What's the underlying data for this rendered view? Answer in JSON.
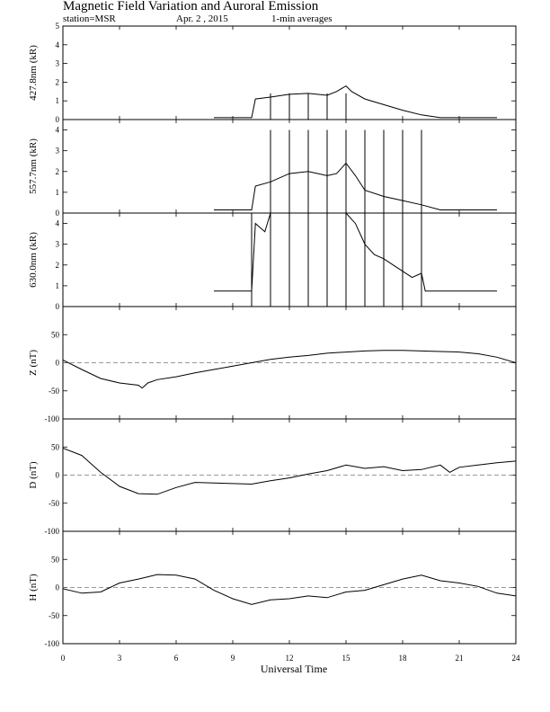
{
  "header": {
    "title": "Magnetic Field Variation and Auroral Emission",
    "station": "station=MSR",
    "date": "Apr. 2  , 2015",
    "averaging": "1-min averages"
  },
  "chart_data": [
    {
      "type": "line",
      "ylabel": "427.8nm (kR)",
      "xlim": [
        0,
        24
      ],
      "ylim": [
        0,
        5
      ],
      "yticks": [
        0,
        1,
        2,
        3,
        4,
        5
      ],
      "series": [
        {
          "x": [
            8,
            10,
            10.2,
            11,
            12,
            13,
            14,
            14.5,
            15,
            15.3,
            16,
            17,
            18,
            19,
            20,
            21,
            22,
            23
          ],
          "y": [
            0.1,
            0.1,
            1.1,
            1.2,
            1.35,
            1.4,
            1.3,
            1.5,
            1.8,
            1.5,
            1.1,
            0.8,
            0.5,
            0.25,
            0.1,
            0.1,
            0.1,
            0.1
          ]
        }
      ],
      "spikes": [
        11,
        12,
        13,
        14,
        15
      ],
      "spike_top": 1.4
    },
    {
      "type": "line",
      "ylabel": "557.7nm (kR)",
      "xlim": [
        0,
        24
      ],
      "ylim": [
        0,
        4.5
      ],
      "yticks": [
        0,
        1,
        2,
        3,
        4
      ],
      "series": [
        {
          "x": [
            8,
            10,
            10.2,
            11,
            12,
            13,
            14,
            14.5,
            15,
            15.5,
            16,
            17,
            18,
            19,
            20,
            21,
            22,
            23
          ],
          "y": [
            0.15,
            0.15,
            1.3,
            1.5,
            1.9,
            2.0,
            1.8,
            1.9,
            2.4,
            1.8,
            1.1,
            0.8,
            0.6,
            0.4,
            0.15,
            0.15,
            0.15,
            0.15
          ]
        }
      ],
      "spikes": [
        11,
        12,
        13,
        14,
        15,
        16,
        17,
        18,
        19
      ],
      "spike_top": 4.0
    },
    {
      "type": "line",
      "ylabel": "630.0nm (kR)",
      "xlim": [
        0,
        24
      ],
      "ylim": [
        0,
        4.5
      ],
      "yticks": [
        0,
        1,
        2,
        3,
        4
      ],
      "series": [
        {
          "x": [
            8,
            10,
            10.2,
            10.7,
            11,
            11.5,
            14.5,
            15,
            15.5,
            16,
            16.5,
            17,
            17.5,
            18,
            18.5,
            19,
            19.2,
            20,
            21,
            22,
            23
          ],
          "y": [
            0.75,
            0.75,
            4.0,
            3.6,
            4.5,
            4.5,
            4.5,
            4.5,
            4.0,
            3.0,
            2.5,
            2.3,
            2.0,
            1.7,
            1.4,
            1.6,
            0.75,
            0.75,
            0.75,
            0.75,
            0.75
          ]
        }
      ],
      "spikes": [
        10,
        11,
        12,
        13,
        14,
        15,
        16,
        17,
        18,
        19
      ],
      "spike_top": 4.5
    },
    {
      "type": "line",
      "ylabel": "Z (nT)",
      "xlim": [
        0,
        24
      ],
      "ylim": [
        -100,
        100
      ],
      "yticks": [
        -100,
        -50,
        0,
        50
      ],
      "zero_line": true,
      "series": [
        {
          "x": [
            0,
            1,
            2,
            3,
            4,
            4.2,
            4.5,
            5,
            6,
            7,
            8,
            9,
            10,
            11,
            12,
            13,
            14,
            15,
            16,
            17,
            18,
            19,
            20,
            21,
            22,
            23,
            24
          ],
          "y": [
            5,
            -12,
            -28,
            -36,
            -40,
            -45,
            -36,
            -30,
            -25,
            -18,
            -12,
            -6,
            0,
            6,
            10,
            13,
            17,
            19,
            21,
            22,
            22,
            21,
            20,
            19,
            16,
            10,
            0
          ]
        }
      ]
    },
    {
      "type": "line",
      "ylabel": "D (nT)",
      "xlim": [
        0,
        24
      ],
      "ylim": [
        -100,
        100
      ],
      "yticks": [
        -100,
        -50,
        0,
        50
      ],
      "zero_line": true,
      "series": [
        {
          "x": [
            0,
            1,
            2,
            3,
            4,
            5,
            6,
            7,
            8,
            9,
            10,
            11,
            12,
            13,
            14,
            15,
            16,
            17,
            18,
            19,
            20,
            20.5,
            21,
            22,
            23,
            24
          ],
          "y": [
            48,
            35,
            5,
            -20,
            -33,
            -34,
            -22,
            -13,
            -14,
            -15,
            -16,
            -10,
            -5,
            2,
            8,
            18,
            12,
            15,
            8,
            10,
            18,
            5,
            14,
            18,
            22,
            25
          ]
        }
      ]
    },
    {
      "type": "line",
      "ylabel": "H (nT)",
      "xlim": [
        0,
        24
      ],
      "ylim": [
        -100,
        100
      ],
      "yticks": [
        -100,
        -50,
        0,
        50
      ],
      "zero_line": true,
      "series": [
        {
          "x": [
            0,
            1,
            2,
            2.5,
            3,
            4,
            5,
            6,
            7,
            8,
            9,
            10,
            11,
            12,
            13,
            14,
            15,
            16,
            17,
            18,
            19,
            20,
            21,
            22,
            23,
            24
          ],
          "y": [
            -2,
            -10,
            -8,
            0,
            8,
            15,
            23,
            22,
            15,
            -5,
            -20,
            -30,
            -22,
            -20,
            -15,
            -18,
            -8,
            -5,
            5,
            15,
            22,
            12,
            8,
            2,
            -10,
            -15
          ]
        }
      ]
    }
  ],
  "xaxis": {
    "label": "Universal Time",
    "ticks": [
      0,
      3,
      6,
      9,
      12,
      15,
      18,
      21,
      24
    ]
  }
}
